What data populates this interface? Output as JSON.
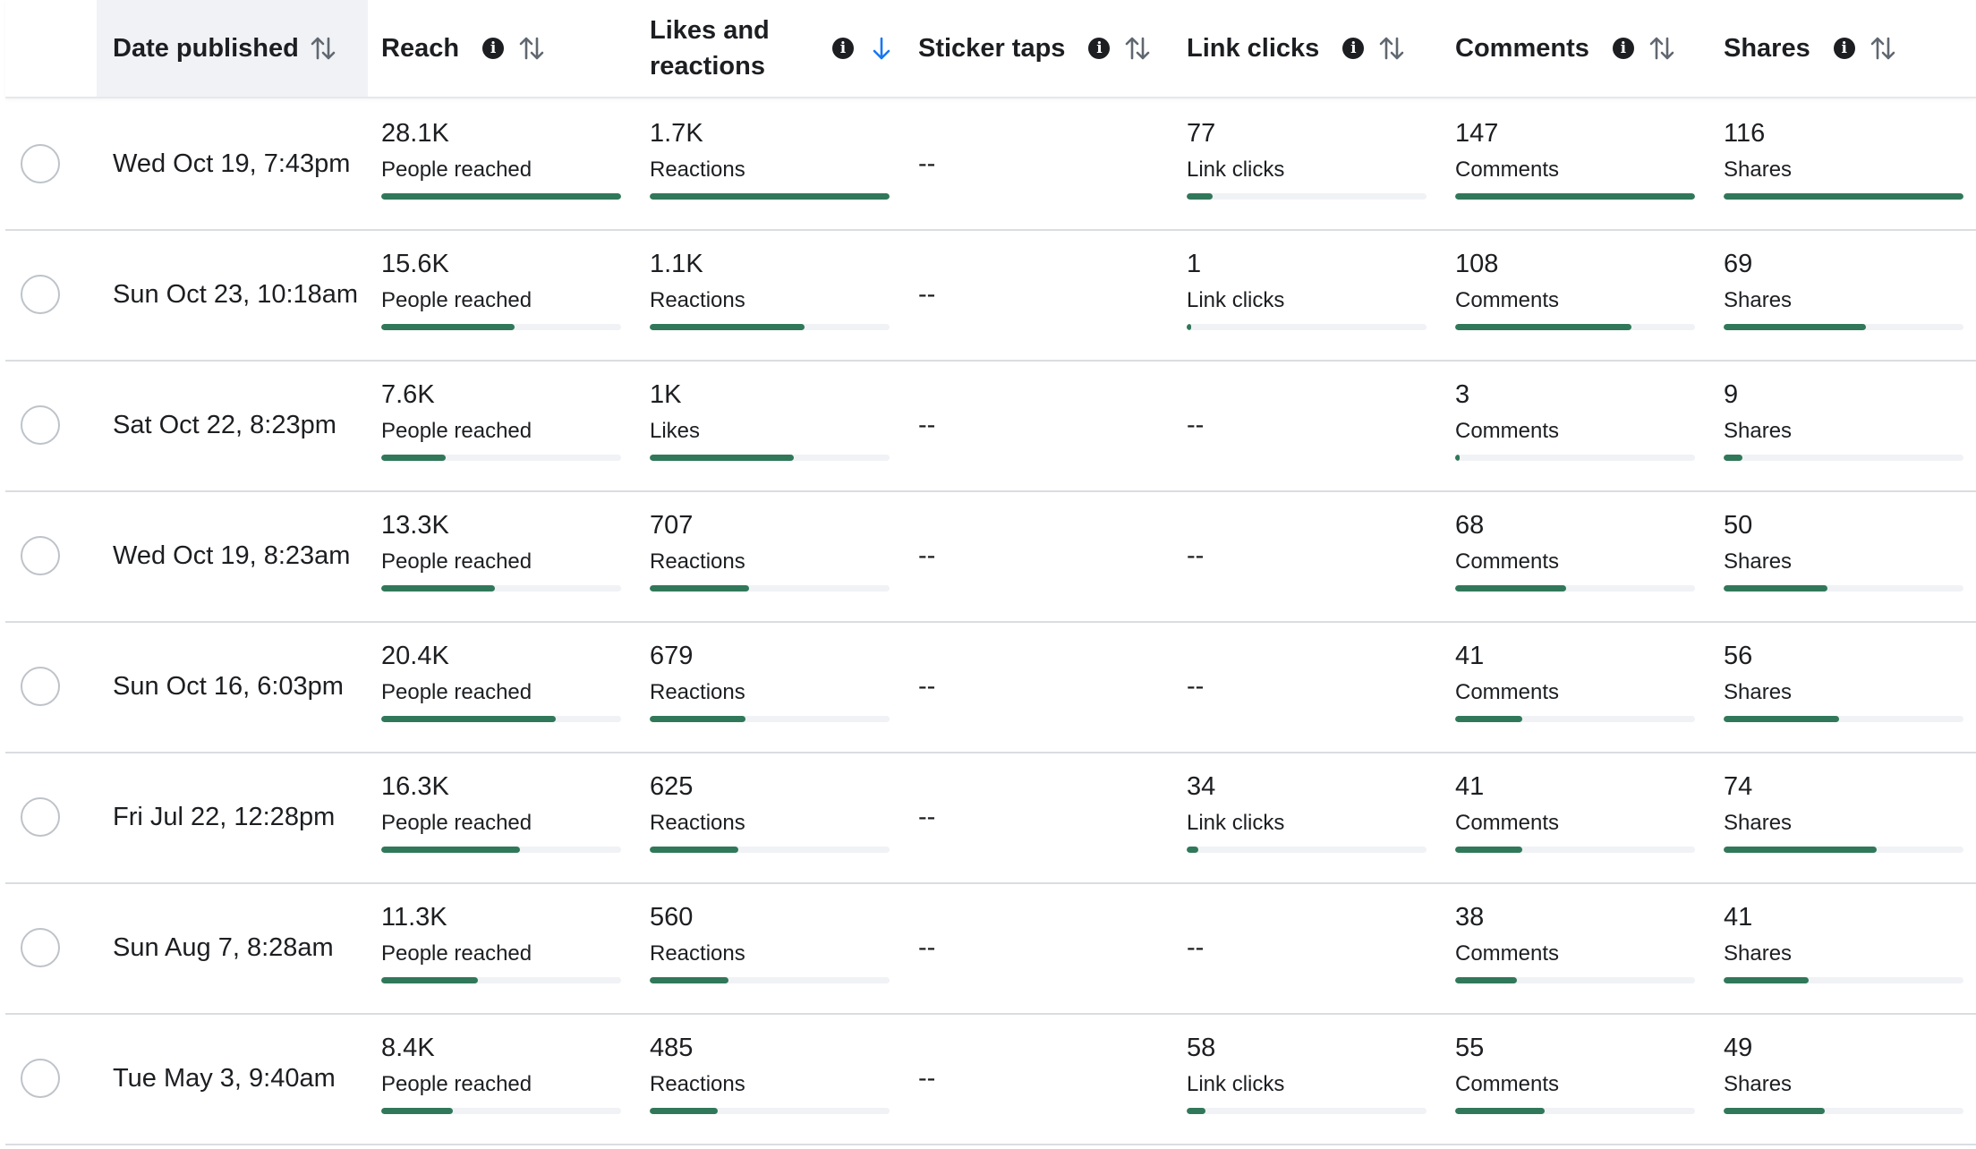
{
  "colors": {
    "bar": "#31785a",
    "track": "#f0f2f5",
    "sort_active": "#1877f2"
  },
  "columns": [
    {
      "key": "date",
      "label": "Date published",
      "info": false,
      "sort": "both",
      "highlighted": true
    },
    {
      "key": "reach",
      "label": "Reach",
      "info": true,
      "sort": "both"
    },
    {
      "key": "likes",
      "label": "Likes and reactions",
      "info": true,
      "sort": "down-active"
    },
    {
      "key": "sticker",
      "label": "Sticker taps",
      "info": true,
      "sort": "both"
    },
    {
      "key": "links",
      "label": "Link clicks",
      "info": true,
      "sort": "both"
    },
    {
      "key": "comments",
      "label": "Comments",
      "info": true,
      "sort": "both"
    },
    {
      "key": "shares",
      "label": "Shares",
      "info": true,
      "sort": "both"
    }
  ],
  "empty_value": "--",
  "rows": [
    {
      "date": "Wed Oct 19, 7:43pm",
      "reach": {
        "value": "28.1K",
        "label": "People reached",
        "fraction": 1.0
      },
      "likes": {
        "value": "1.7K",
        "label": "Reactions",
        "fraction": 1.0
      },
      "sticker": null,
      "links": {
        "value": "77",
        "label": "Link clicks",
        "fraction": 0.11
      },
      "comments": {
        "value": "147",
        "label": "Comments",
        "fraction": 1.0
      },
      "shares": {
        "value": "116",
        "label": "Shares",
        "fraction": 1.0
      }
    },
    {
      "date": "Sun Oct 23, 10:18am",
      "reach": {
        "value": "15.6K",
        "label": "People reached",
        "fraction": 0.555
      },
      "likes": {
        "value": "1.1K",
        "label": "Reactions",
        "fraction": 0.645
      },
      "sticker": null,
      "links": {
        "value": "1",
        "label": "Link clicks",
        "fraction": 0.005
      },
      "comments": {
        "value": "108",
        "label": "Comments",
        "fraction": 0.735
      },
      "shares": {
        "value": "69",
        "label": "Shares",
        "fraction": 0.595
      }
    },
    {
      "date": "Sat Oct 22, 8:23pm",
      "reach": {
        "value": "7.6K",
        "label": "People reached",
        "fraction": 0.27
      },
      "likes": {
        "value": "1K",
        "label": "Likes",
        "fraction": 0.6
      },
      "sticker": null,
      "links": null,
      "comments": {
        "value": "3",
        "label": "Comments",
        "fraction": 0.02
      },
      "shares": {
        "value": "9",
        "label": "Shares",
        "fraction": 0.078
      }
    },
    {
      "date": "Wed Oct 19, 8:23am",
      "reach": {
        "value": "13.3K",
        "label": "People reached",
        "fraction": 0.473
      },
      "likes": {
        "value": "707",
        "label": "Reactions",
        "fraction": 0.416
      },
      "sticker": null,
      "links": null,
      "comments": {
        "value": "68",
        "label": "Comments",
        "fraction": 0.463
      },
      "shares": {
        "value": "50",
        "label": "Shares",
        "fraction": 0.431
      }
    },
    {
      "date": "Sun Oct 16, 6:03pm",
      "reach": {
        "value": "20.4K",
        "label": "People reached",
        "fraction": 0.726
      },
      "likes": {
        "value": "679",
        "label": "Reactions",
        "fraction": 0.4
      },
      "sticker": null,
      "links": null,
      "comments": {
        "value": "41",
        "label": "Comments",
        "fraction": 0.279
      },
      "shares": {
        "value": "56",
        "label": "Shares",
        "fraction": 0.483
      }
    },
    {
      "date": "Fri Jul 22, 12:28pm",
      "reach": {
        "value": "16.3K",
        "label": "People reached",
        "fraction": 0.58
      },
      "likes": {
        "value": "625",
        "label": "Reactions",
        "fraction": 0.368
      },
      "sticker": null,
      "links": {
        "value": "34",
        "label": "Link clicks",
        "fraction": 0.05
      },
      "comments": {
        "value": "41",
        "label": "Comments",
        "fraction": 0.279
      },
      "shares": {
        "value": "74",
        "label": "Shares",
        "fraction": 0.638
      }
    },
    {
      "date": "Sun Aug 7, 8:28am",
      "reach": {
        "value": "11.3K",
        "label": "People reached",
        "fraction": 0.402
      },
      "likes": {
        "value": "560",
        "label": "Reactions",
        "fraction": 0.329
      },
      "sticker": null,
      "links": null,
      "comments": {
        "value": "38",
        "label": "Comments",
        "fraction": 0.259
      },
      "shares": {
        "value": "41",
        "label": "Shares",
        "fraction": 0.353
      }
    },
    {
      "date": "Tue May 3, 9:40am",
      "reach": {
        "value": "8.4K",
        "label": "People reached",
        "fraction": 0.299
      },
      "likes": {
        "value": "485",
        "label": "Reactions",
        "fraction": 0.285
      },
      "sticker": null,
      "links": {
        "value": "58",
        "label": "Link clicks",
        "fraction": 0.08
      },
      "comments": {
        "value": "55",
        "label": "Comments",
        "fraction": 0.374
      },
      "shares": {
        "value": "49",
        "label": "Shares",
        "fraction": 0.422
      }
    }
  ]
}
